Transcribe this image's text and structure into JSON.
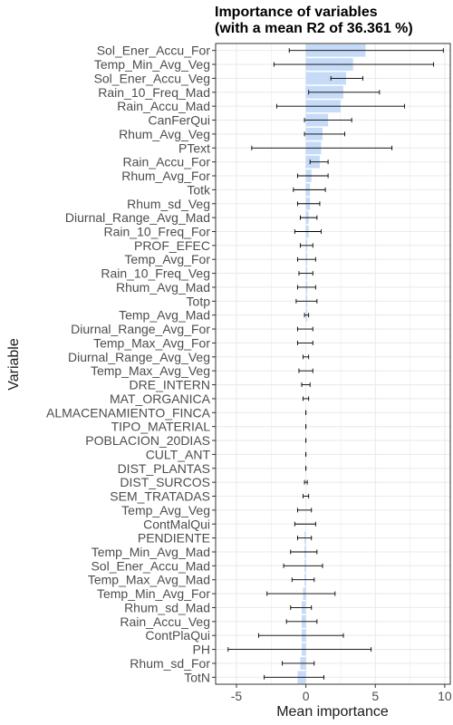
{
  "chart_data": {
    "type": "bar",
    "title": [
      "Importance of variables",
      "(with a mean R2 of 36.361 %)"
    ],
    "xlabel": "Mean importance",
    "ylabel": "Variable",
    "xlim": [
      -6.5,
      10.4
    ],
    "xticks": [
      -5,
      0,
      5,
      10
    ],
    "grid": true,
    "legend": "none",
    "colors": {
      "bar": "#c6dbf7",
      "errorbar": "#000000",
      "panel_border": "#333333",
      "grid": "#ebebeb"
    },
    "categories": [
      "Sol_Ener_Accu_For",
      "Temp_Min_Avg_Veg",
      "Sol_Ener_Accu_Veg",
      "Rain_10_Freq_Mad",
      "Rain_Accu_Mad",
      "CanFerQui",
      "Rhum_Avg_Veg",
      "PText",
      "Rain_Accu_For",
      "Rhum_Avg_For",
      "Totk",
      "Rhum_sd_Veg",
      "Diurnal_Range_Avg_Mad",
      "Rain_10_Freq_For",
      "PROF_EFEC",
      "Temp_Avg_For",
      "Rain_10_Freq_Veg",
      "Rhum_Avg_Mad",
      "Totp",
      "Temp_Avg_Mad",
      "Diurnal_Range_Avg_For",
      "Temp_Max_Avg_For",
      "Diurnal_Range_Avg_Veg",
      "Temp_Max_Avg_Veg",
      "DRE_INTERN",
      "MAT_ORGANICA",
      "ALMACENAMIENTO_FINCA",
      "TIPO_MATERIAL",
      "POBLACION_20DIAS",
      "CULT_ANT",
      "DIST_PLANTAS",
      "DIST_SURCOS",
      "SEM_TRATADAS",
      "Temp_Avg_Veg",
      "ContMalQui",
      "PENDIENTE",
      "Temp_Min_Avg_Mad",
      "Sol_Ener_Accu_Mad",
      "Temp_Max_Avg_Mad",
      "Temp_Min_Avg_For",
      "Rhum_sd_Mad",
      "Rain_Accu_Veg",
      "ContPlaQui",
      "PH",
      "Rhum_sd_For",
      "TotN"
    ],
    "values": [
      4.3,
      3.4,
      2.9,
      2.7,
      2.5,
      1.6,
      1.2,
      1.1,
      1.0,
      0.4,
      0.3,
      0.3,
      0.2,
      0.2,
      0.1,
      0.1,
      0.1,
      0.1,
      0.1,
      0.1,
      0.0,
      0.0,
      0.0,
      0.0,
      0.0,
      0.0,
      0.0,
      0.0,
      0.0,
      0.0,
      0.0,
      0.0,
      0.0,
      0.0,
      0.0,
      -0.1,
      -0.1,
      -0.1,
      -0.1,
      -0.2,
      -0.3,
      -0.3,
      -0.3,
      -0.3,
      -0.4,
      -0.6
    ],
    "error_low": [
      -1.2,
      -2.3,
      1.8,
      0.2,
      -2.1,
      -0.1,
      -0.1,
      -3.9,
      0.3,
      -0.6,
      -0.9,
      -0.6,
      -0.4,
      -0.8,
      -0.4,
      -0.6,
      -0.5,
      -0.6,
      -0.7,
      -0.1,
      -0.6,
      -0.6,
      -0.2,
      -0.5,
      -0.3,
      -0.2,
      0.0,
      0.0,
      0.0,
      0.0,
      0.0,
      -0.1,
      -0.2,
      -0.6,
      -0.8,
      -0.6,
      -1.1,
      -1.6,
      -1.0,
      -2.8,
      -1.1,
      -1.4,
      -3.4,
      -5.6,
      -1.7,
      -3.0
    ],
    "error_high": [
      9.9,
      9.2,
      4.1,
      5.3,
      7.1,
      3.3,
      2.8,
      6.2,
      1.6,
      1.6,
      1.4,
      1.0,
      0.8,
      1.1,
      0.5,
      0.7,
      0.5,
      0.7,
      0.8,
      0.2,
      0.5,
      0.5,
      0.2,
      0.5,
      0.3,
      0.2,
      0.0,
      0.0,
      0.0,
      0.0,
      0.0,
      0.1,
      0.2,
      0.4,
      0.7,
      0.4,
      0.8,
      1.2,
      0.6,
      2.1,
      0.4,
      0.8,
      2.7,
      4.7,
      0.6,
      1.3
    ]
  }
}
